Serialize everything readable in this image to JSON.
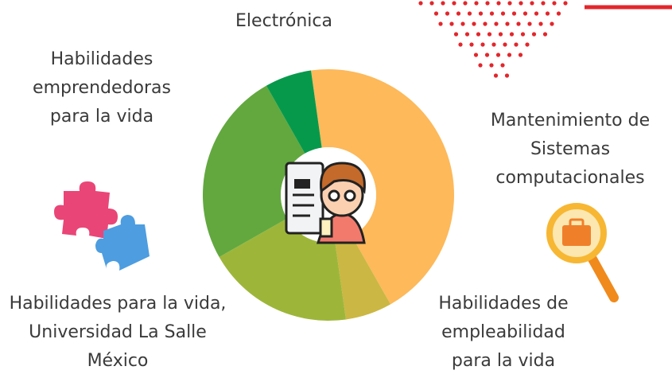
{
  "chart_data": {
    "type": "pie",
    "donut": true,
    "categories": [
      "Mantenimiento de Sistemas computacionales",
      "Habilidades de empleabilidad para la vida",
      "Habilidades para la vida, Universidad La Salle México",
      "Habilidades emprendedoras para la vida",
      "Electrónica"
    ],
    "values": [
      44,
      6,
      19,
      25,
      6
    ],
    "colors": [
      "#fdb95a",
      "#cbb743",
      "#9db63a",
      "#62a83f",
      "#07994b"
    ]
  }
}
